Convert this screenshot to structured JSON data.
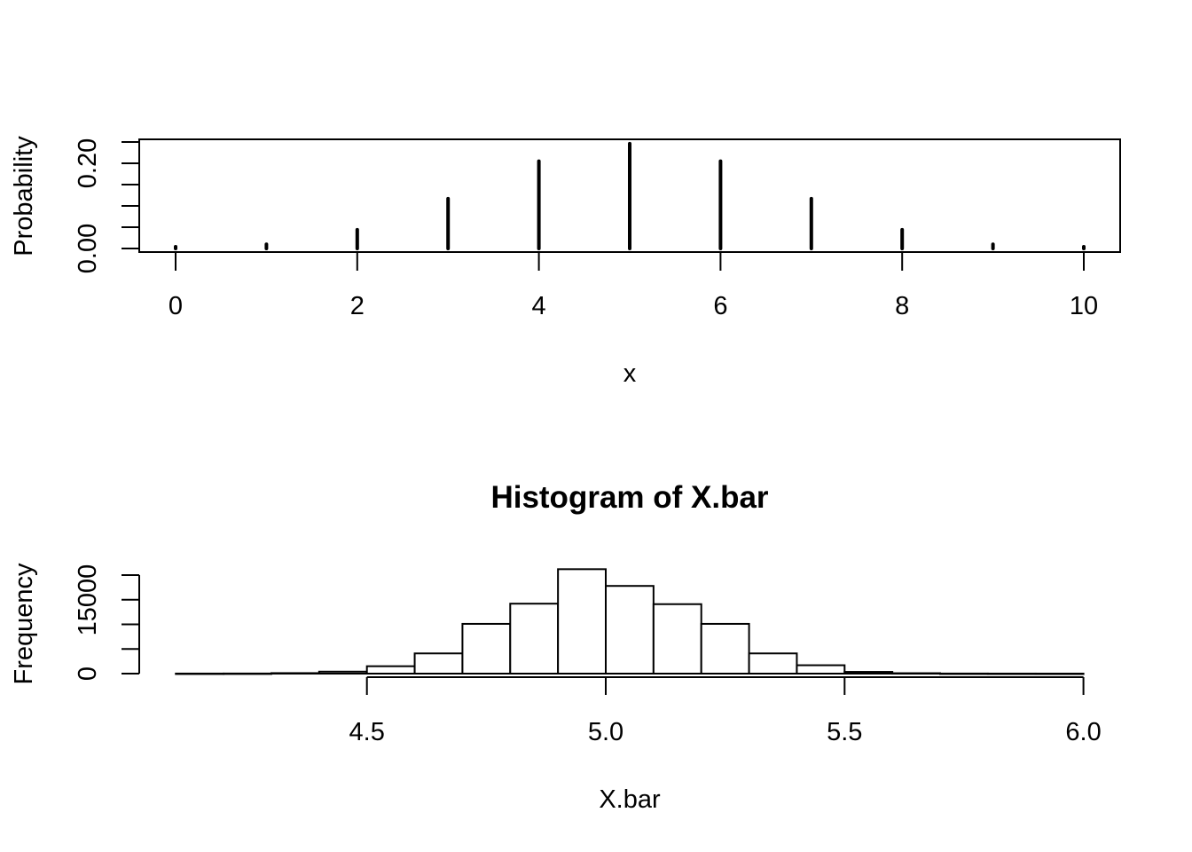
{
  "chart_data": [
    {
      "type": "bar",
      "subtype": "probability-mass-spikes",
      "title": "",
      "xlabel": "x",
      "ylabel": "Probability",
      "x": [
        0,
        1,
        2,
        3,
        4,
        5,
        6,
        7,
        8,
        9,
        10
      ],
      "values": [
        0.001,
        0.0098,
        0.044,
        0.117,
        0.205,
        0.246,
        0.205,
        0.117,
        0.044,
        0.0098,
        0.001
      ],
      "xlim": [
        -0.4,
        10.4
      ],
      "ylim": [
        0,
        0.25
      ],
      "x_ticks": [
        0,
        2,
        4,
        6,
        8,
        10
      ],
      "x_tick_labels": [
        "0",
        "2",
        "4",
        "6",
        "8",
        "10"
      ],
      "y_ticks": [
        0.0,
        0.05,
        0.1,
        0.15,
        0.2,
        0.25
      ],
      "y_tick_labels": [
        "0.00",
        "",
        "",
        "",
        "0.20",
        ""
      ],
      "grid": false,
      "box": true,
      "color": "#000000"
    },
    {
      "type": "bar",
      "subtype": "histogram",
      "title": "Histogram of X.bar",
      "xlabel": "X.bar",
      "ylabel": "Frequency",
      "bin_edges": [
        4.1,
        4.2,
        4.3,
        4.4,
        4.5,
        4.6,
        4.7,
        4.8,
        4.9,
        5.0,
        5.1,
        5.2,
        5.3,
        5.4,
        5.5,
        5.6,
        5.7,
        5.8,
        5.9,
        6.0
      ],
      "categories": [
        "4.1-4.2",
        "4.2-4.3",
        "4.3-4.4",
        "4.4-4.5",
        "4.5-4.6",
        "4.6-4.7",
        "4.7-4.8",
        "4.8-4.9",
        "4.9-5.0",
        "5.0-5.1",
        "5.1-5.2",
        "5.2-5.3",
        "5.3-5.4",
        "5.4-5.5",
        "5.5-5.6",
        "5.6-5.7",
        "5.7-5.8",
        "5.8-5.9",
        "5.9-6.0"
      ],
      "values": [
        10,
        20,
        100,
        400,
        1500,
        4100,
        10100,
        14200,
        21200,
        17800,
        14100,
        10100,
        4100,
        1700,
        350,
        80,
        15,
        5,
        2
      ],
      "xlim": [
        4.1,
        6.0
      ],
      "ylim": [
        0,
        20000
      ],
      "x_ticks": [
        4.5,
        5.0,
        5.5,
        6.0
      ],
      "x_tick_labels": [
        "4.5",
        "5.0",
        "5.5",
        "6.0"
      ],
      "y_ticks": [
        0,
        5000,
        10000,
        15000,
        20000
      ],
      "y_tick_labels": [
        "0",
        "",
        "",
        "15000",
        ""
      ],
      "grid": false,
      "fill": "#ffffff",
      "stroke": "#000000"
    }
  ],
  "plot1": {
    "xlabel": "x",
    "ylabel": "Probability",
    "ytick_low": "0.00",
    "ytick_high": "0.20"
  },
  "plot2": {
    "title": "Histogram of X.bar",
    "xlabel": "X.bar",
    "ylabel": "Frequency",
    "ytick_low": "0",
    "ytick_high": "15000"
  }
}
